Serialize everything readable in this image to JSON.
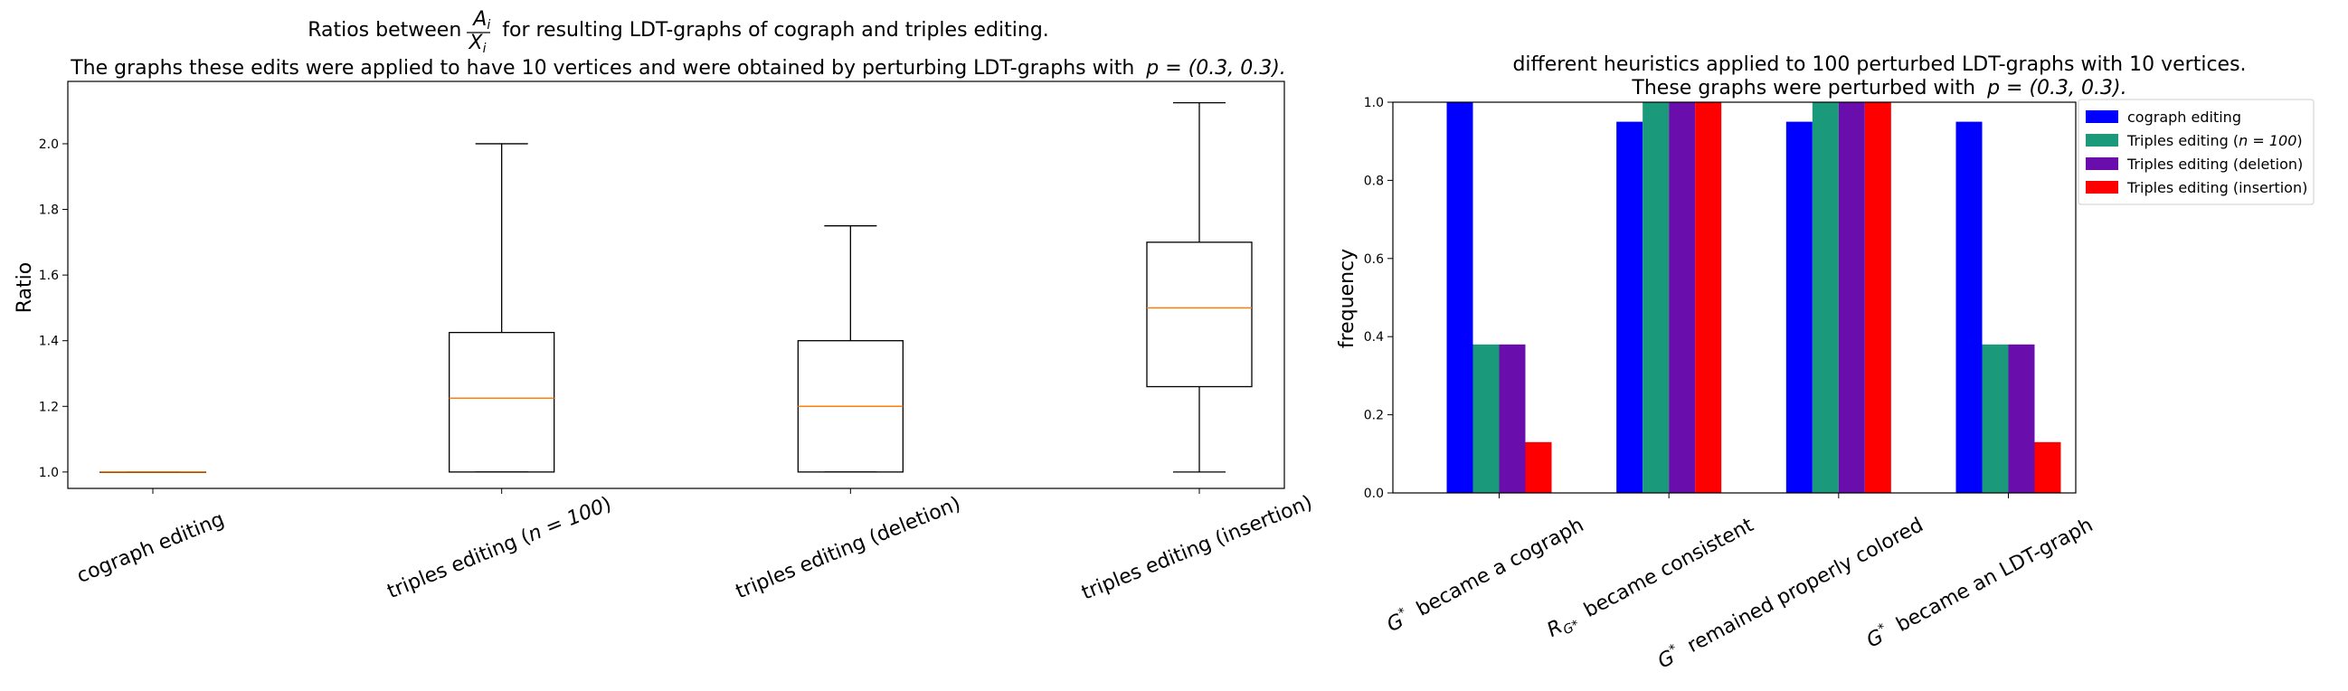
{
  "chart_data": [
    {
      "type": "box",
      "title_lead": "Ratios between",
      "title_frac_numerator": "A",
      "title_frac_numerator_sub": "i",
      "title_frac_denominator": "X",
      "title_frac_denominator_sub": "i",
      "title_tail": "for resulting LDT-graphs of cograph and triples editing.",
      "subtitle": "The graphs these edits were applied to have 10 vertices and were obtained by perturbing LDT-graphs with",
      "subtitle_math": "p = (0.3, 0.3).",
      "ylabel": "Ratio",
      "xlabel": "",
      "ylim": [
        0.95,
        2.19
      ],
      "yticks": [
        "1.0",
        "1.2",
        "1.4",
        "1.6",
        "1.8",
        "2.0"
      ],
      "grid": false,
      "median_color": "#ff7f0e",
      "box_color": "#000000",
      "categories": [
        {
          "label": "cograph editing",
          "math": ""
        },
        {
          "label": "triples editing (",
          "math": "n = 100",
          "suffix": ")"
        },
        {
          "label": "triples editing (deletion)",
          "math": ""
        },
        {
          "label": "triples editing (insertion)",
          "math": ""
        }
      ],
      "boxes": [
        {
          "whislo": 1.0,
          "q1": 1.0,
          "med": 1.0,
          "q3": 1.0,
          "whishi": 1.0
        },
        {
          "whislo": 1.0,
          "q1": 1.0,
          "med": 1.225,
          "q3": 1.425,
          "whishi": 2.0
        },
        {
          "whislo": 1.0,
          "q1": 1.0,
          "med": 1.2,
          "q3": 1.4,
          "whishi": 1.75
        },
        {
          "whislo": 1.0,
          "q1": 1.26,
          "med": 1.5,
          "q3": 1.7,
          "whishi": 2.125
        }
      ]
    },
    {
      "type": "bar",
      "title_line1": "different heuristics applied to 100 perturbed LDT-graphs with 10 vertices.",
      "title_line2": "These graphs were perturbed with",
      "title_line2_math": "p = (0.3, 0.3).",
      "ylabel": "frequency",
      "xlabel": "",
      "ylim": [
        0.0,
        1.0
      ],
      "yticks": [
        "0.0",
        "0.2",
        "0.4",
        "0.6",
        "0.8",
        "1.0"
      ],
      "grid": false,
      "legend_position": "outside-top-right",
      "categories": [
        {
          "sym": "G",
          "sup": "*",
          "text": "became a cograph"
        },
        {
          "sym": "R",
          "sub": "G*",
          "text": "became consistent"
        },
        {
          "sym": "G",
          "sup": "*",
          "text": "remained properly colored"
        },
        {
          "sym": "G",
          "sup": "*",
          "text": "became an LDT-graph"
        }
      ],
      "series": [
        {
          "name": "cograph editing",
          "color": "#0000ff",
          "values": [
            1.0,
            0.95,
            0.95,
            0.95
          ]
        },
        {
          "name": "Triples editing (",
          "name_math": "n = 100",
          "name_suffix": ")",
          "color": "#1a9a7a",
          "values": [
            0.38,
            1.0,
            1.0,
            0.38
          ]
        },
        {
          "name": "Triples editing (deletion)",
          "color": "#6a0dad",
          "values": [
            0.38,
            1.0,
            1.0,
            0.38
          ]
        },
        {
          "name": "Triples editing (insertion)",
          "color": "#ff0000",
          "values": [
            0.13,
            1.0,
            1.0,
            0.13
          ]
        }
      ]
    }
  ]
}
